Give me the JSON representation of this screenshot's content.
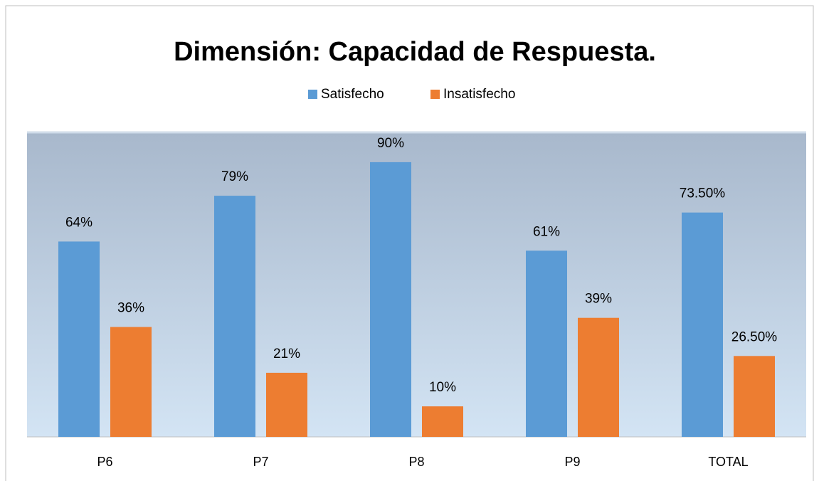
{
  "chart_data": {
    "type": "bar",
    "title": "Dimensión: Capacidad de Respuesta.",
    "categories": [
      "P6",
      "P7",
      "P8",
      "P9",
      "TOTAL"
    ],
    "series": [
      {
        "name": "Satisfecho",
        "color": "#5b9bd5",
        "values": [
          64,
          79,
          90,
          61,
          73.5
        ],
        "value_labels": [
          "64%",
          "79%",
          "90%",
          "61%",
          "73.50%"
        ]
      },
      {
        "name": "Insatisfecho",
        "color": "#ed7d31",
        "values": [
          36,
          21,
          10,
          39,
          26.5
        ],
        "value_labels": [
          "36%",
          "21%",
          "10%",
          "39%",
          "26.50%"
        ]
      }
    ],
    "ylim": [
      0,
      100
    ],
    "legend": "top"
  }
}
